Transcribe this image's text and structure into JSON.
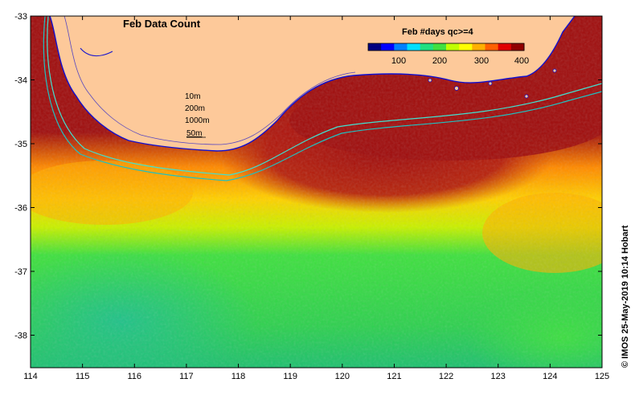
{
  "map": {
    "title": "Feb Data Count",
    "colorbar": {
      "title": "Feb #days qc>=4",
      "ticks": [
        "100",
        "200",
        "300",
        "400"
      ],
      "tick_values": [
        100,
        200,
        300,
        400
      ],
      "range": [
        0,
        400
      ],
      "colors": [
        "#000080",
        "#0000ff",
        "#0080ff",
        "#00e0ff",
        "#20e080",
        "#40e040",
        "#c0ff00",
        "#ffff00",
        "#ffb000",
        "#ff6000",
        "#e00000",
        "#900000"
      ]
    },
    "x_ticks": [
      "114",
      "115",
      "116",
      "117",
      "118",
      "119",
      "120",
      "121",
      "122",
      "123",
      "124",
      "125"
    ],
    "y_ticks": [
      "-33",
      "-34",
      "-35",
      "-36",
      "-37",
      "-38"
    ],
    "legend": {
      "items": [
        {
          "label": "10m"
        },
        {
          "label": "200m"
        },
        {
          "label": "1000m"
        },
        {
          "label": "50m",
          "underlined": true
        }
      ]
    },
    "credit": "© IMOS 25-May-2019 10:14 Hobart",
    "colors": {
      "land": "#fdc99a",
      "deep_count": "#a01010",
      "isobath_1000m": "#40e0d0",
      "isobath_200m": "#20c0c0",
      "coastline": "#1010d0"
    }
  }
}
